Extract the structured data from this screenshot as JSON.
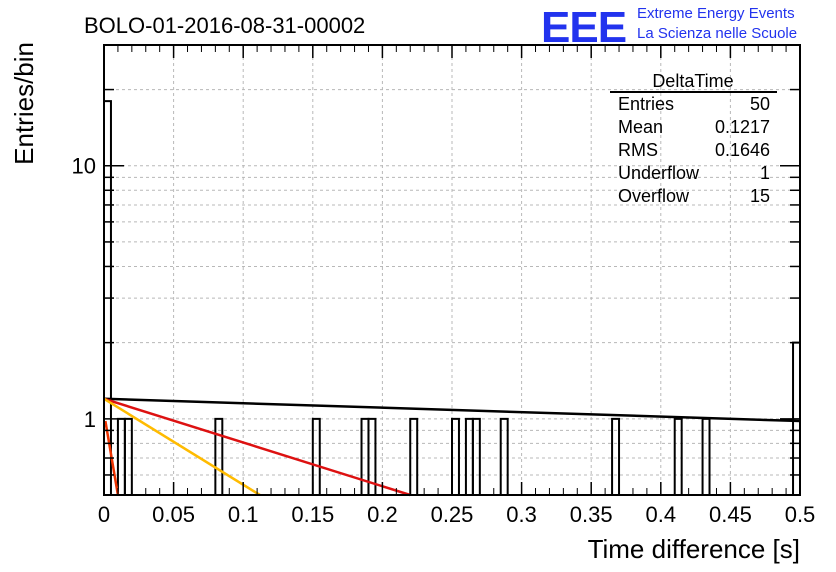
{
  "chart_data": {
    "type": "bar",
    "title": "BOLO-01-2016-08-31-00002",
    "xlabel": "Time difference [s]",
    "ylabel": "Entries/bin",
    "xlim": [
      0,
      0.5
    ],
    "ylim": [
      0.5,
      30
    ],
    "yscale": "log",
    "grid": true,
    "x_ticks": [
      "0",
      "0.05",
      "0.1",
      "0.15",
      "0.2",
      "0.25",
      "0.3",
      "0.35",
      "0.4",
      "0.45",
      "0.5"
    ],
    "y_ticks": [
      "1",
      "10"
    ],
    "bin_width": 0.005,
    "bins": [
      {
        "x": 0.0,
        "value": 18
      },
      {
        "x": 0.01,
        "value": 1
      },
      {
        "x": 0.015,
        "value": 1
      },
      {
        "x": 0.08,
        "value": 1
      },
      {
        "x": 0.15,
        "value": 1
      },
      {
        "x": 0.185,
        "value": 1
      },
      {
        "x": 0.19,
        "value": 1
      },
      {
        "x": 0.22,
        "value": 1
      },
      {
        "x": 0.25,
        "value": 1
      },
      {
        "x": 0.26,
        "value": 1
      },
      {
        "x": 0.265,
        "value": 1
      },
      {
        "x": 0.285,
        "value": 1
      },
      {
        "x": 0.365,
        "value": 1
      },
      {
        "x": 0.41,
        "value": 1
      },
      {
        "x": 0.43,
        "value": 1
      },
      {
        "x": 0.495,
        "value": 2
      }
    ],
    "fit_curves": [
      {
        "color": "#000000",
        "points": [
          [
            0,
            1.2
          ],
          [
            0.5,
            0.98
          ]
        ]
      },
      {
        "color": "#dd1111",
        "points": [
          [
            0,
            1.2
          ],
          [
            0.22,
            0.5
          ]
        ]
      },
      {
        "color": "#ffbb00",
        "points": [
          [
            0,
            1.2
          ],
          [
            0.112,
            0.5
          ]
        ]
      },
      {
        "color": "#ee3300",
        "points": [
          [
            0.001,
            0.98
          ],
          [
            0.01,
            0.5
          ]
        ]
      }
    ],
    "stats": {
      "name": "DeltaTime",
      "rows": [
        {
          "label": "Entries",
          "value": "50"
        },
        {
          "label": "Mean",
          "value": "0.1217"
        },
        {
          "label": "RMS",
          "value": "0.1646"
        },
        {
          "label": "Underflow",
          "value": "1"
        },
        {
          "label": "Overflow",
          "value": "15"
        }
      ]
    }
  },
  "logo": {
    "letters": "EEE",
    "line1": "Extreme Energy Events",
    "line2": "La Scienza nelle Scuole"
  }
}
